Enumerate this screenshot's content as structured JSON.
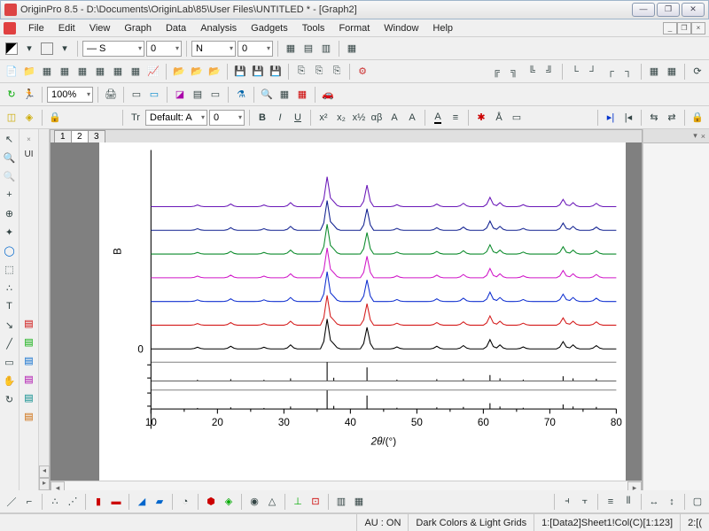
{
  "window": {
    "title": "OriginPro 8.5 - D:\\Documents\\OriginLab\\85\\User Files\\UNTITLED * - [Graph2]"
  },
  "menu": [
    "File",
    "Edit",
    "View",
    "Graph",
    "Data",
    "Analysis",
    "Gadgets",
    "Tools",
    "Format",
    "Window",
    "Help"
  ],
  "toolbar_row1": {
    "stroke_combo": "— S",
    "width_combo": "0",
    "fill_combo": "N",
    "fill_val": "0"
  },
  "toolbar_zoom": "100%",
  "font_toolbar": {
    "font_combo": "Default: A",
    "size_combo": "0"
  },
  "tabs": [
    "1",
    "2",
    "3"
  ],
  "active_tab": 1,
  "side_label": "UI",
  "chart": {
    "xlabel": "2θ/(°)",
    "ylabel": "B",
    "xlim": [
      10,
      80
    ],
    "xtick_step": 10,
    "background": "#ffffff",
    "axis_color": "#000000",
    "tick_font_size": 13,
    "label_font_size": 16,
    "peak_x": [
      17,
      22,
      27,
      31,
      36.5,
      37.5,
      42.5,
      47,
      53,
      57,
      61,
      62.5,
      66,
      72,
      73.5,
      77
    ],
    "peak_h": [
      0.05,
      0.08,
      0.05,
      0.12,
      0.9,
      0.15,
      0.65,
      0.06,
      0.08,
      0.1,
      0.28,
      0.12,
      0.06,
      0.22,
      0.12,
      0.1
    ],
    "traces": [
      {
        "color": "#000000",
        "y0": 0.0
      },
      {
        "color": "#d41c1c",
        "y0": 0.09
      },
      {
        "color": "#1030d0",
        "y0": 0.18
      },
      {
        "color": "#d018c8",
        "y0": 0.27
      },
      {
        "color": "#0a8a2a",
        "y0": 0.36
      },
      {
        "color": "#102090",
        "y0": 0.45
      },
      {
        "color": "#6a18b8",
        "y0": 0.54
      }
    ],
    "zero_marker": "0",
    "ref_bars": {
      "color": "#000000"
    }
  },
  "status": {
    "au": "AU : ON",
    "theme": "Dark Colors & Light Grids",
    "range1": "1:[Data2]Sheet1!Col(C)[1:123]",
    "range2": "2:[("
  }
}
